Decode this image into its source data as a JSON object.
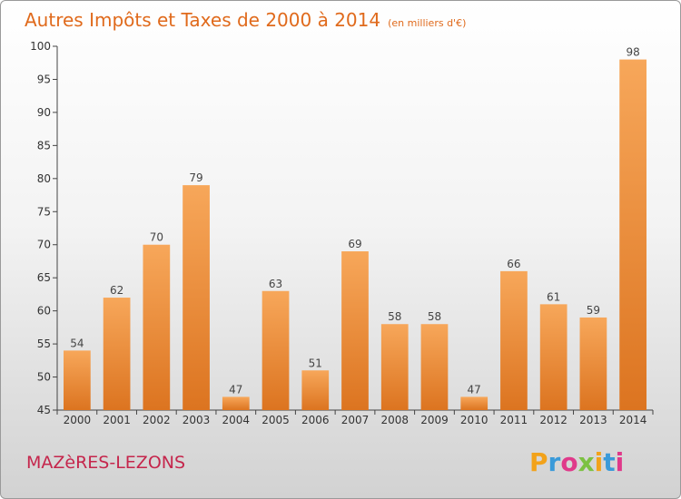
{
  "chart_data": {
    "type": "bar",
    "title": "Autres Impôts et Taxes de 2000 à 2014",
    "subtitle": "(en milliers d'€)",
    "categories": [
      "2000",
      "2001",
      "2002",
      "2003",
      "2004",
      "2005",
      "2006",
      "2007",
      "2008",
      "2009",
      "2010",
      "2011",
      "2012",
      "2013",
      "2014"
    ],
    "values": [
      54,
      62,
      70,
      79,
      47,
      63,
      51,
      69,
      58,
      58,
      47,
      66,
      61,
      59,
      98
    ],
    "ylim": [
      45,
      100
    ],
    "yticks": [
      45,
      50,
      55,
      60,
      65,
      70,
      75,
      80,
      85,
      90,
      95,
      100
    ],
    "grid": false,
    "bar_color": "#f0923a"
  },
  "footer": {
    "commune": "MAZèRES-LEZONS",
    "brand_letters": [
      "P",
      "r",
      "o",
      "x",
      "i",
      "t",
      "i"
    ],
    "brand_colors": [
      "#f2a21a",
      "#3a9ad9",
      "#e0398a",
      "#7cc142",
      "#f2a21a",
      "#3a9ad9",
      "#e0398a"
    ]
  }
}
